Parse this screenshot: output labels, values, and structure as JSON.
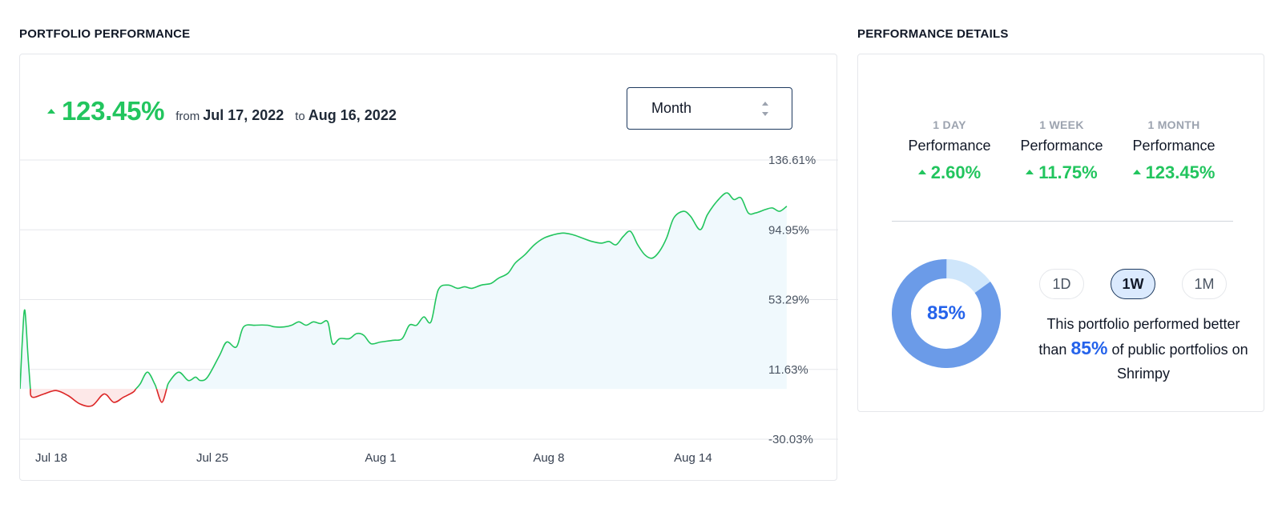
{
  "portfolio": {
    "section_title": "PORTFOLIO PERFORMANCE",
    "headline_pct": "123.45%",
    "from_label": "from",
    "from_date": "Jul 17, 2022",
    "to_label": "to",
    "to_date": "Aug 16, 2022",
    "range_select": {
      "value": "Month"
    }
  },
  "chart_data": {
    "type": "area",
    "y_ticks": [
      "136.61%",
      "94.95%",
      "53.29%",
      "11.63%",
      "-30.03%"
    ],
    "ylim": [
      -30.03,
      136.61
    ],
    "x_ticks": [
      {
        "label": "Jul 18",
        "day": 1.3
      },
      {
        "label": "Jul 25",
        "day": 8
      },
      {
        "label": "Aug 1",
        "day": 15
      },
      {
        "label": "Aug 8",
        "day": 22
      },
      {
        "label": "Aug 14",
        "day": 28
      }
    ],
    "xlim": [
      0,
      30.97
    ],
    "baseline": 0,
    "colors": {
      "positive": "#22c55e",
      "negative": "#dc2626",
      "positive_fill": "#f0f9fd",
      "negative_fill": "#fde8e8"
    },
    "series": [
      {
        "points": [
          [
            0.0,
            0
          ],
          [
            0.1,
            30
          ],
          [
            0.2,
            47
          ],
          [
            0.33,
            20
          ],
          [
            0.45,
            -4
          ],
          [
            0.6,
            -5
          ],
          [
            1.0,
            -3
          ],
          [
            1.5,
            -1
          ],
          [
            2.0,
            -4
          ],
          [
            2.5,
            -9
          ],
          [
            3.0,
            -10
          ],
          [
            3.5,
            -3
          ],
          [
            3.9,
            -8
          ],
          [
            4.3,
            -5
          ],
          [
            4.7,
            -2
          ],
          [
            5.0,
            3
          ],
          [
            5.3,
            10
          ],
          [
            5.6,
            3
          ],
          [
            5.9,
            -8
          ],
          [
            6.2,
            4
          ],
          [
            6.6,
            10
          ],
          [
            7.0,
            5
          ],
          [
            7.3,
            7
          ],
          [
            7.5,
            5
          ],
          [
            7.8,
            7
          ],
          [
            8.3,
            20
          ],
          [
            8.6,
            28
          ],
          [
            9.0,
            25
          ],
          [
            9.3,
            37
          ],
          [
            9.8,
            38
          ],
          [
            10.3,
            38
          ],
          [
            10.6,
            37
          ],
          [
            11.0,
            37
          ],
          [
            11.3,
            38
          ],
          [
            11.6,
            40
          ],
          [
            11.9,
            38
          ],
          [
            12.2,
            40
          ],
          [
            12.5,
            39
          ],
          [
            12.8,
            40
          ],
          [
            13.0,
            27
          ],
          [
            13.3,
            30
          ],
          [
            13.7,
            30
          ],
          [
            14.0,
            33
          ],
          [
            14.3,
            32
          ],
          [
            14.6,
            27
          ],
          [
            15.0,
            28
          ],
          [
            15.5,
            29
          ],
          [
            15.9,
            30
          ],
          [
            16.2,
            38
          ],
          [
            16.5,
            38
          ],
          [
            16.8,
            43
          ],
          [
            17.1,
            40
          ],
          [
            17.4,
            59
          ],
          [
            17.8,
            62
          ],
          [
            18.2,
            60
          ],
          [
            18.5,
            61
          ],
          [
            18.8,
            60
          ],
          [
            19.2,
            62
          ],
          [
            19.6,
            63
          ],
          [
            19.9,
            66
          ],
          [
            20.3,
            69
          ],
          [
            20.6,
            75
          ],
          [
            21.0,
            80
          ],
          [
            21.4,
            86
          ],
          [
            21.8,
            90
          ],
          [
            22.2,
            92
          ],
          [
            22.6,
            93
          ],
          [
            23.0,
            92
          ],
          [
            23.4,
            90
          ],
          [
            23.8,
            88
          ],
          [
            24.2,
            87
          ],
          [
            24.5,
            88
          ],
          [
            24.8,
            86
          ],
          [
            25.1,
            91
          ],
          [
            25.4,
            94
          ],
          [
            25.7,
            86
          ],
          [
            26.0,
            80
          ],
          [
            26.3,
            78
          ],
          [
            26.6,
            82
          ],
          [
            26.9,
            90
          ],
          [
            27.2,
            102
          ],
          [
            27.6,
            106
          ],
          [
            27.9,
            103
          ],
          [
            28.3,
            95
          ],
          [
            28.6,
            104
          ],
          [
            29.0,
            112
          ],
          [
            29.4,
            117
          ],
          [
            29.7,
            113
          ],
          [
            30.0,
            114
          ],
          [
            30.3,
            105
          ],
          [
            30.6,
            105
          ],
          [
            31.0,
            107
          ],
          [
            31.3,
            108
          ],
          [
            31.6,
            106
          ],
          [
            31.9,
            109
          ]
        ]
      }
    ]
  },
  "details": {
    "section_title": "PERFORMANCE DETAILS",
    "stats": [
      {
        "period": "1 DAY",
        "label": "Performance",
        "value": "2.60%"
      },
      {
        "period": "1 WEEK",
        "label": "Performance",
        "value": "11.75%"
      },
      {
        "period": "1 MONTH",
        "label": "Performance",
        "value": "123.45%"
      }
    ],
    "percentile": {
      "value": 85,
      "label": "85%"
    },
    "donut_colors": {
      "filled": "#6b9be8",
      "remainder": "#cfe6fb"
    },
    "toggles": [
      "1D",
      "1W",
      "1M"
    ],
    "active_toggle": "1W",
    "blurb_before": "This portfolio performed better than",
    "blurb_highlight": "85%",
    "blurb_after": "of public portfolios on Shrimpy"
  }
}
